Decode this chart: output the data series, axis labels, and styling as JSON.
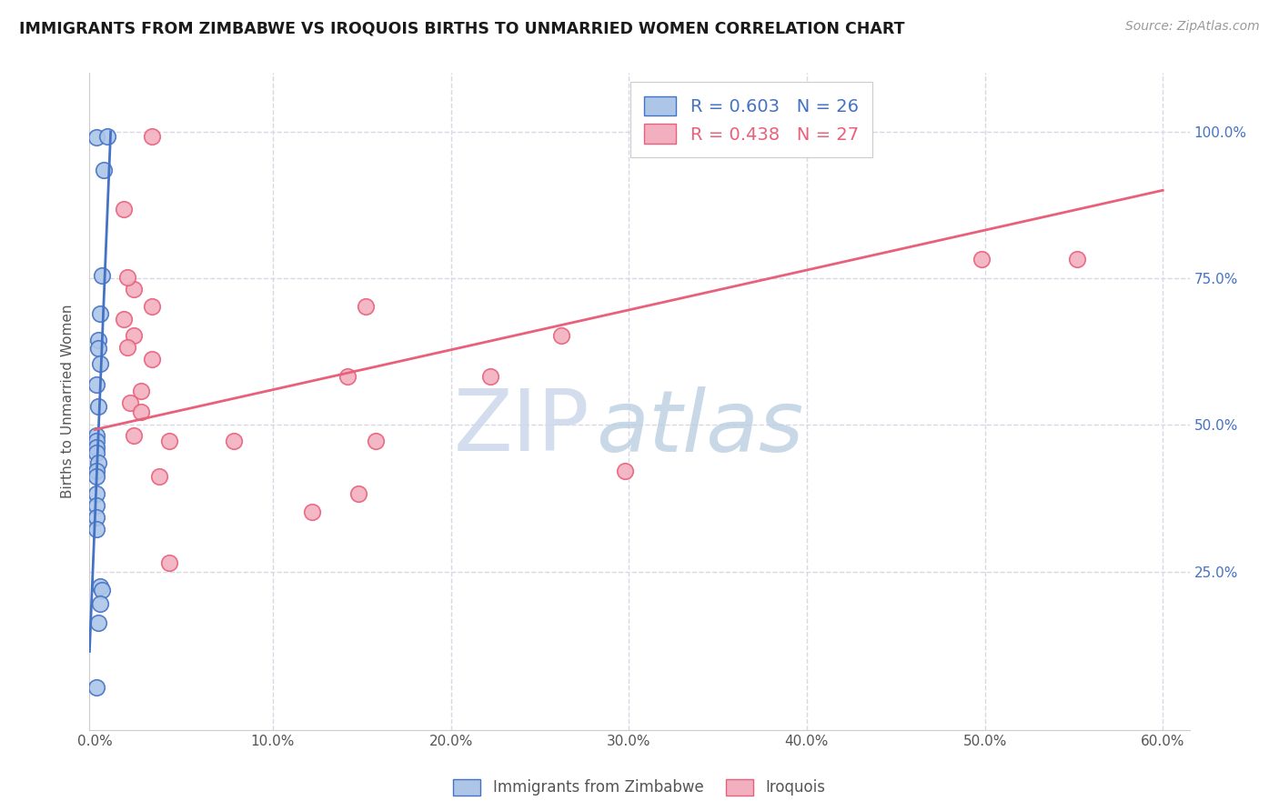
{
  "title": "IMMIGRANTS FROM ZIMBABWE VS IROQUOIS BIRTHS TO UNMARRIED WOMEN CORRELATION CHART",
  "source": "Source: ZipAtlas.com",
  "ylabel": "Births to Unmarried Women",
  "legend_label1": "Immigrants from Zimbabwe",
  "legend_label2": "Iroquois",
  "r1": "0.603",
  "n1": "26",
  "r2": "0.438",
  "n2": "27",
  "xlim": [
    -0.003,
    0.615
  ],
  "ylim": [
    -0.02,
    1.1
  ],
  "xtick_labels": [
    "0.0%",
    "10.0%",
    "20.0%",
    "30.0%",
    "40.0%",
    "50.0%",
    "60.0%"
  ],
  "xtick_values": [
    0.0,
    0.1,
    0.2,
    0.3,
    0.4,
    0.5,
    0.6
  ],
  "ytick_labels": [
    "25.0%",
    "50.0%",
    "75.0%",
    "100.0%"
  ],
  "ytick_values": [
    0.25,
    0.5,
    0.75,
    1.0
  ],
  "color1": "#adc6e8",
  "color2": "#f2afc0",
  "line_color1": "#4472C4",
  "line_color2": "#E8607A",
  "blue_dots": [
    [
      0.0008,
      0.99
    ],
    [
      0.0052,
      0.935
    ],
    [
      0.0072,
      0.992
    ],
    [
      0.0038,
      0.755
    ],
    [
      0.0028,
      0.69
    ],
    [
      0.002,
      0.645
    ],
    [
      0.0018,
      0.63
    ],
    [
      0.0028,
      0.605
    ],
    [
      0.001,
      0.568
    ],
    [
      0.0018,
      0.532
    ],
    [
      0.001,
      0.482
    ],
    [
      0.001,
      0.472
    ],
    [
      0.001,
      0.462
    ],
    [
      0.001,
      0.452
    ],
    [
      0.0018,
      0.435
    ],
    [
      0.001,
      0.422
    ],
    [
      0.001,
      0.412
    ],
    [
      0.001,
      0.382
    ],
    [
      0.001,
      0.362
    ],
    [
      0.001,
      0.342
    ],
    [
      0.001,
      0.322
    ],
    [
      0.0028,
      0.225
    ],
    [
      0.0038,
      0.218
    ],
    [
      0.0028,
      0.195
    ],
    [
      0.0018,
      0.162
    ],
    [
      0.0008,
      0.052
    ]
  ],
  "pink_dots": [
    [
      0.032,
      0.992
    ],
    [
      0.016,
      0.868
    ],
    [
      0.022,
      0.732
    ],
    [
      0.016,
      0.68
    ],
    [
      0.022,
      0.652
    ],
    [
      0.018,
      0.632
    ],
    [
      0.152,
      0.702
    ],
    [
      0.032,
      0.612
    ],
    [
      0.142,
      0.582
    ],
    [
      0.026,
      0.558
    ],
    [
      0.02,
      0.538
    ],
    [
      0.026,
      0.522
    ],
    [
      0.022,
      0.482
    ],
    [
      0.042,
      0.472
    ],
    [
      0.078,
      0.472
    ],
    [
      0.158,
      0.472
    ],
    [
      0.222,
      0.582
    ],
    [
      0.262,
      0.652
    ],
    [
      0.298,
      0.422
    ],
    [
      0.036,
      0.412
    ],
    [
      0.148,
      0.382
    ],
    [
      0.122,
      0.352
    ],
    [
      0.042,
      0.265
    ],
    [
      0.498,
      0.782
    ],
    [
      0.552,
      0.782
    ],
    [
      0.018,
      0.752
    ],
    [
      0.032,
      0.702
    ]
  ],
  "pink_line_x": [
    0.0,
    0.6
  ],
  "pink_line_y": [
    0.492,
    0.9
  ],
  "watermark_zip": "ZIP",
  "watermark_atlas": "atlas",
  "background_color": "#ffffff",
  "grid_color": "#d8d8e4",
  "title_color": "#1a1a1a",
  "axis_label_color": "#555555",
  "right_axis_color": "#4472C4",
  "source_color": "#999999"
}
